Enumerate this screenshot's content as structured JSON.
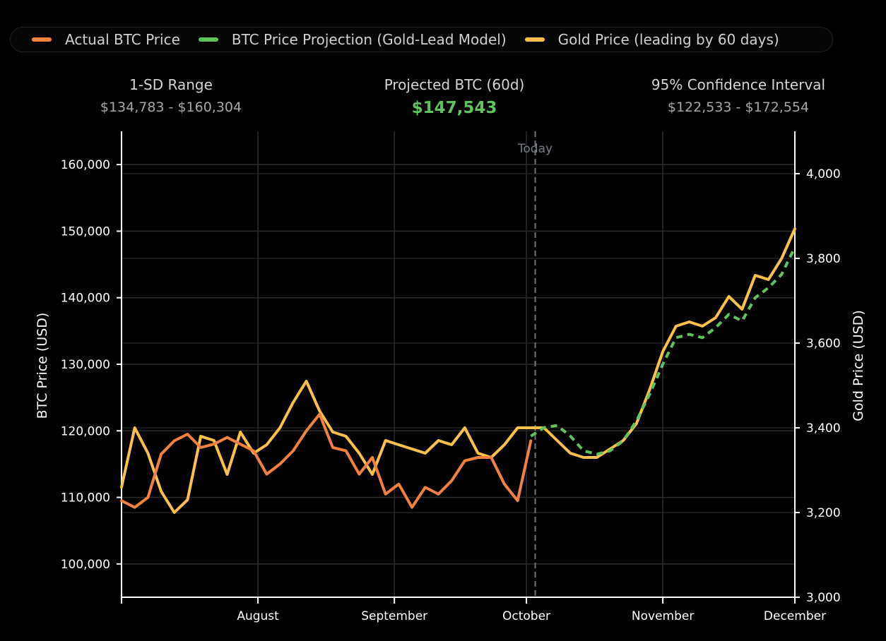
{
  "legend": [
    {
      "label": "Actual BTC Price",
      "color": "#f0813f"
    },
    {
      "label": "BTC Price Projection (Gold-Lead Model)",
      "color": "#5fc25e"
    },
    {
      "label": "Gold Price (leading by 60 days)",
      "color": "#f9c14b"
    }
  ],
  "stats": {
    "sd_range": {
      "label": "1-SD Range",
      "value": "$134,783 - $160,304"
    },
    "projected": {
      "label": "Projected BTC (60d)",
      "value": "$147,543",
      "color": "#5fc25e"
    },
    "confidence": {
      "label": "95% Confidence Interval",
      "value": "$122,533 - $172,554"
    }
  },
  "chart_data": {
    "type": "line",
    "x_start": "2025-07-01",
    "x_end": "2025-12-01",
    "x_ticks": [
      {
        "date": "2025-08-01",
        "label": "August"
      },
      {
        "date": "2025-09-01",
        "label": "September"
      },
      {
        "date": "2025-10-01",
        "label": "October"
      },
      {
        "date": "2025-11-01",
        "label": "November"
      },
      {
        "date": "2025-12-01",
        "label": "December"
      }
    ],
    "today_date": "2025-10-03",
    "today_label": "Today",
    "y_left": {
      "label": "BTC Price (USD)",
      "min": 95000,
      "max": 165000,
      "ticks": [
        100000,
        110000,
        120000,
        130000,
        140000,
        150000,
        160000
      ],
      "tick_labels": [
        "100,000",
        "110,000",
        "120,000",
        "130,000",
        "140,000",
        "150,000",
        "160,000"
      ]
    },
    "y_right": {
      "label": "Gold Price (USD)",
      "min": 3000,
      "max": 4100,
      "ticks": [
        3000,
        3200,
        3400,
        3600,
        3800,
        4000
      ],
      "tick_labels": [
        "3,000",
        "3,200",
        "3,400",
        "3,600",
        "3,800",
        "4,000"
      ]
    },
    "grid": true,
    "series": [
      {
        "name": "Actual BTC Price",
        "axis": "left",
        "color": "#f0813f",
        "dashed": false,
        "x": [
          "2025-07-01",
          "2025-07-04",
          "2025-07-07",
          "2025-07-10",
          "2025-07-13",
          "2025-07-16",
          "2025-07-19",
          "2025-07-22",
          "2025-07-25",
          "2025-07-28",
          "2025-07-31",
          "2025-08-03",
          "2025-08-06",
          "2025-08-09",
          "2025-08-12",
          "2025-08-15",
          "2025-08-18",
          "2025-08-21",
          "2025-08-24",
          "2025-08-27",
          "2025-08-30",
          "2025-09-02",
          "2025-09-05",
          "2025-09-08",
          "2025-09-11",
          "2025-09-14",
          "2025-09-17",
          "2025-09-20",
          "2025-09-23",
          "2025-09-26",
          "2025-09-29",
          "2025-10-02"
        ],
        "y": [
          109500,
          108500,
          110000,
          116500,
          118500,
          119500,
          117500,
          118000,
          119000,
          118000,
          117000,
          113500,
          115000,
          117000,
          120000,
          122500,
          117500,
          117000,
          113500,
          116000,
          110500,
          112000,
          108500,
          111500,
          110500,
          112500,
          115500,
          116000,
          116000,
          112000,
          109500,
          118500
        ]
      },
      {
        "name": "Gold Price (leading by 60 days)",
        "axis": "right",
        "color": "#f9c14b",
        "dashed": false,
        "x": [
          "2025-07-01",
          "2025-07-04",
          "2025-07-07",
          "2025-07-10",
          "2025-07-13",
          "2025-07-16",
          "2025-07-19",
          "2025-07-22",
          "2025-07-25",
          "2025-07-28",
          "2025-07-31",
          "2025-08-03",
          "2025-08-06",
          "2025-08-09",
          "2025-08-12",
          "2025-08-15",
          "2025-08-18",
          "2025-08-21",
          "2025-08-24",
          "2025-08-27",
          "2025-08-30",
          "2025-09-02",
          "2025-09-05",
          "2025-09-08",
          "2025-09-11",
          "2025-09-14",
          "2025-09-17",
          "2025-09-20",
          "2025-09-23",
          "2025-09-26",
          "2025-09-29",
          "2025-10-02",
          "2025-10-05",
          "2025-10-08",
          "2025-10-11",
          "2025-10-14",
          "2025-10-17",
          "2025-10-20",
          "2025-10-23",
          "2025-10-26",
          "2025-10-29",
          "2025-11-01",
          "2025-11-04",
          "2025-11-07",
          "2025-11-10",
          "2025-11-13",
          "2025-11-16",
          "2025-11-19",
          "2025-11-22",
          "2025-11-25",
          "2025-11-28",
          "2025-12-01"
        ],
        "y": [
          3260,
          3400,
          3340,
          3250,
          3200,
          3230,
          3380,
          3370,
          3290,
          3390,
          3340,
          3360,
          3400,
          3460,
          3510,
          3440,
          3390,
          3380,
          3340,
          3290,
          3370,
          3360,
          3350,
          3340,
          3370,
          3360,
          3400,
          3340,
          3330,
          3360,
          3400,
          3400,
          3400,
          3370,
          3340,
          3330,
          3330,
          3350,
          3370,
          3410,
          3490,
          3580,
          3640,
          3650,
          3640,
          3660,
          3710,
          3680,
          3760,
          3750,
          3800,
          3870
        ]
      },
      {
        "name": "BTC Price Projection (Gold-Lead Model)",
        "axis": "left",
        "color": "#5fc25e",
        "dashed": true,
        "x": [
          "2025-10-02",
          "2025-10-05",
          "2025-10-08",
          "2025-10-11",
          "2025-10-14",
          "2025-10-17",
          "2025-10-20",
          "2025-10-23",
          "2025-10-26",
          "2025-10-29",
          "2025-11-01",
          "2025-11-04",
          "2025-11-07",
          "2025-11-10",
          "2025-11-13",
          "2025-11-16",
          "2025-11-19",
          "2025-11-22",
          "2025-11-25",
          "2025-11-28",
          "2025-12-01"
        ],
        "y": [
          119200,
          120500,
          120800,
          119200,
          117000,
          116500,
          117000,
          118500,
          121500,
          125500,
          130000,
          134000,
          134500,
          134000,
          135500,
          137500,
          136500,
          140000,
          141500,
          143500,
          147600
        ]
      }
    ]
  }
}
